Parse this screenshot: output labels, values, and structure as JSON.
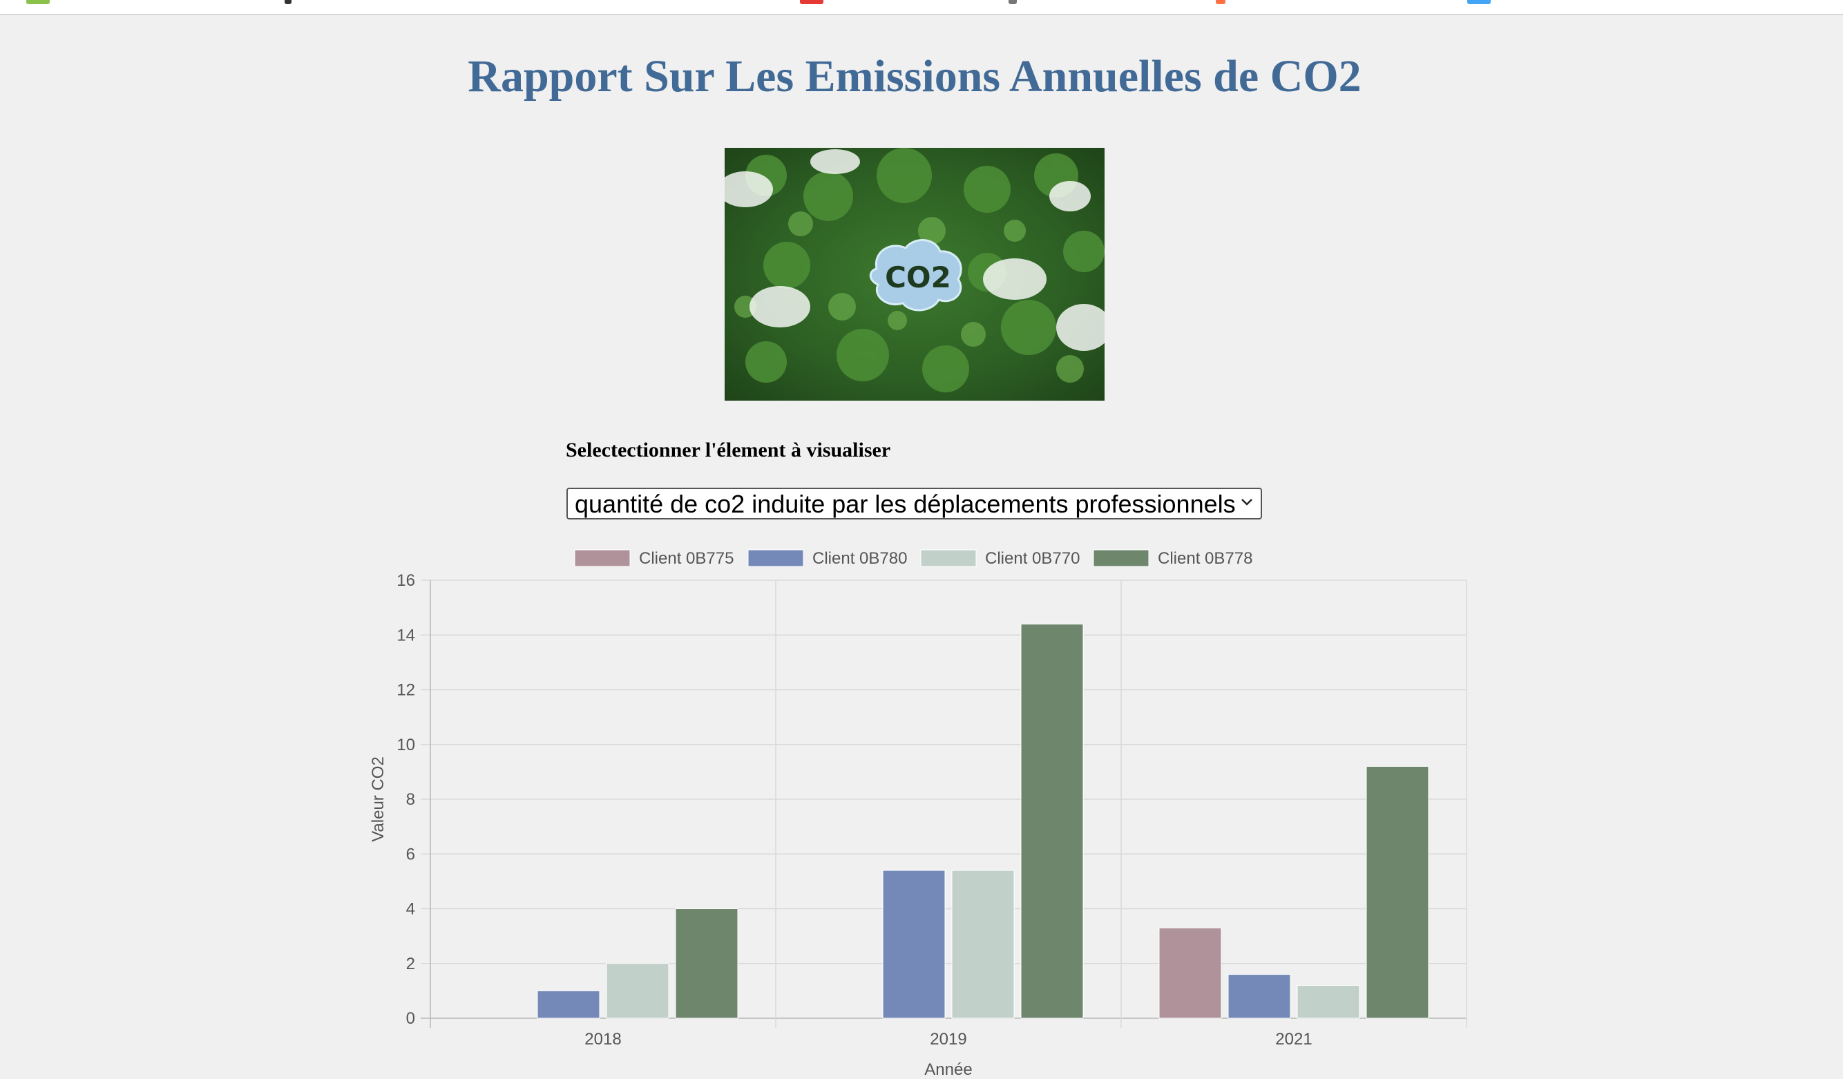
{
  "page": {
    "title": "Rapport Sur Les Emissions Annuelles de CO2",
    "title_color": "#426a96",
    "hero_image": {
      "icon": "co2-forest-image",
      "caption": "CO2"
    },
    "selector": {
      "label": "Selectectionner l'élement à visualiser",
      "selected": "quantité de co2 induite par les déplacements professionnels"
    }
  },
  "chart_data": {
    "type": "bar",
    "categories": [
      "2018",
      "2019",
      "2021"
    ],
    "series": [
      {
        "name": "Client 0B775",
        "color": "#b0929a",
        "values": [
          0,
          0,
          3.3
        ]
      },
      {
        "name": "Client 0B780",
        "color": "#7489b8",
        "values": [
          1.0,
          5.4,
          1.6
        ]
      },
      {
        "name": "Client 0B770",
        "color": "#c1d0c9",
        "values": [
          2.0,
          5.4,
          1.2
        ]
      },
      {
        "name": "Client 0B778",
        "color": "#6e866c",
        "values": [
          4.0,
          14.4,
          9.2
        ]
      }
    ],
    "xlabel": "Année",
    "ylabel": "Valeur CO2",
    "ylim": [
      0,
      16
    ],
    "yticks": [
      0,
      2,
      4,
      6,
      8,
      10,
      12,
      14,
      16
    ],
    "grid": true,
    "legend_position": "top"
  }
}
